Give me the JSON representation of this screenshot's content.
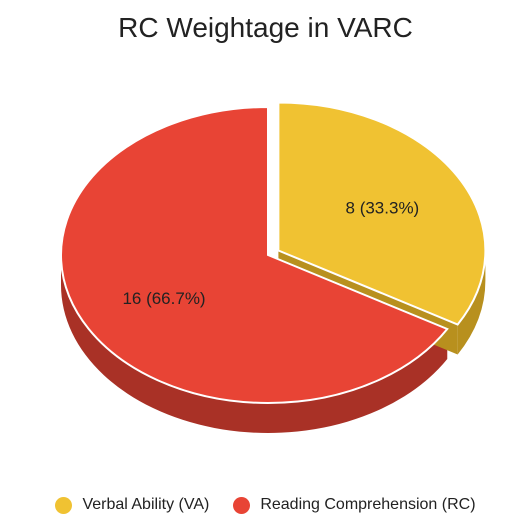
{
  "chart_data": {
    "type": "pie",
    "title": "RC Weightage in VARC",
    "style": "3d",
    "legend_position": "bottom",
    "slices": [
      {
        "name": "Verbal Ability (VA)",
        "value": 8,
        "percent": 33.3,
        "label": "8 (33.3%)",
        "color": "#F0C232",
        "side_color": "#B8901E",
        "exploded": true
      },
      {
        "name": "Reading Comprehension (RC)",
        "value": 16,
        "percent": 66.7,
        "label": "16 (66.7%)",
        "color": "#E84435",
        "side_color": "#A93126",
        "exploded": false
      }
    ]
  }
}
